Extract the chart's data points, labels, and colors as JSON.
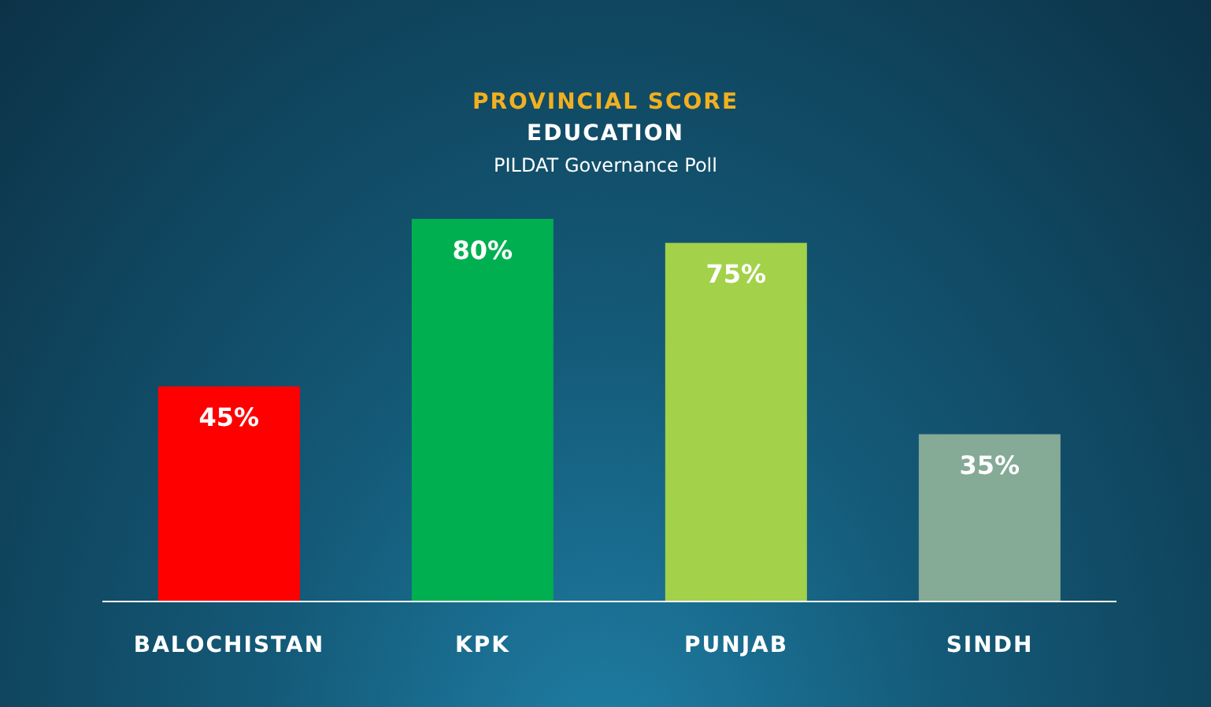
{
  "chart_data": {
    "type": "bar",
    "title": "PROVINCIAL SCORE",
    "subtitle": "EDUCATION",
    "annotations": [
      "PILDAT Governance Poll"
    ],
    "categories": [
      "BALOCHISTAN",
      "KPK",
      "PUNJAB",
      "SINDH"
    ],
    "values": [
      45,
      80,
      75,
      35
    ],
    "colors": [
      "#ff0000",
      "#00b050",
      "#a3d14a",
      "#85aa96"
    ],
    "value_labels": [
      "45%",
      "80%",
      "75%",
      "35%"
    ]
  }
}
